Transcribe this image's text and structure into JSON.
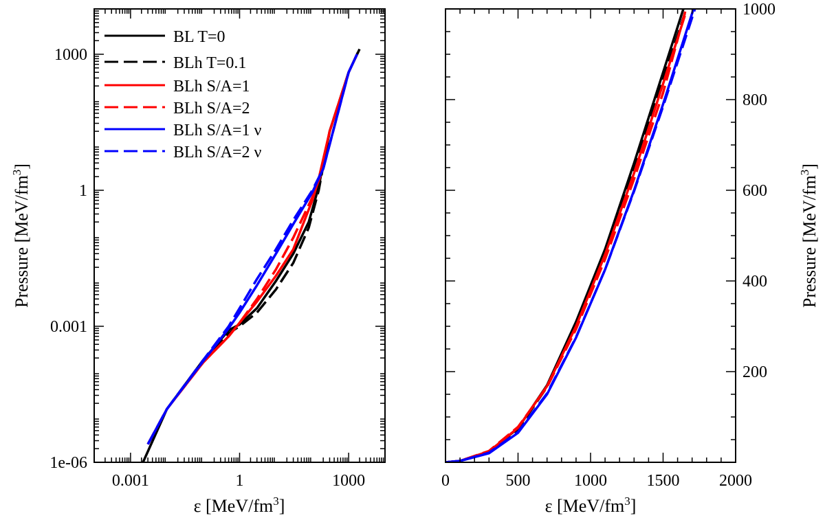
{
  "chart_data": [
    {
      "type": "line",
      "panel": "left",
      "xscale": "log",
      "yscale": "log",
      "xlabel_sym": "ε",
      "xlabel_unit": "[MeV/fm",
      "xlabel_sup": "3",
      "xlabel_close": "]",
      "ylabel_text": "Pressure [MeV/fm",
      "ylabel_sup": "3",
      "ylabel_close": "]",
      "xlim": [
        0.0001,
        10000
      ],
      "ylim": [
        1e-06,
        10000
      ],
      "xticks": [
        {
          "value": 0.001,
          "label": "0.001"
        },
        {
          "value": 1,
          "label": "1"
        },
        {
          "value": 1000,
          "label": "1000"
        }
      ],
      "yticks": [
        {
          "value": 1e-06,
          "label": "1e-06"
        },
        {
          "value": 0.001,
          "label": "0.001"
        },
        {
          "value": 1,
          "label": "1"
        },
        {
          "value": 1000,
          "label": "1000"
        }
      ],
      "legend_position": "top-left",
      "series": [
        {
          "name": "BL T=0",
          "color": "#000000",
          "dash": "solid",
          "x": [
            0.0022,
            0.01,
            0.1,
            0.5,
            1,
            3,
            10,
            30,
            80,
            150,
            300,
            1000,
            2000
          ],
          "y": [
            1e-06,
            1.5e-05,
            0.00018,
            0.00082,
            0.0011,
            0.0025,
            0.01,
            0.04,
            0.2,
            1.2,
            20,
            400,
            1300
          ]
        },
        {
          "name": "BLh T=0.1",
          "color": "#000000",
          "dash": "dashed",
          "x": [
            0.003,
            0.01,
            0.1,
            0.5,
            1,
            3,
            10,
            30,
            80,
            150,
            300,
            1000,
            1800
          ],
          "y": [
            2.5e-06,
            1.5e-05,
            0.00018,
            0.0007,
            0.001,
            0.002,
            0.0065,
            0.025,
            0.15,
            1.0,
            20,
            400,
            1100
          ]
        },
        {
          "name": "BLh S/A=1",
          "color": "#ff0000",
          "dash": "solid",
          "x": [
            0.003,
            0.01,
            0.1,
            0.5,
            1,
            3,
            10,
            30,
            100,
            150,
            300,
            1000,
            1700
          ],
          "y": [
            2.5e-06,
            1.5e-05,
            0.00016,
            0.0006,
            0.0012,
            0.0035,
            0.013,
            0.05,
            0.6,
            1.8,
            20,
            400,
            1000
          ]
        },
        {
          "name": "BLh S/A=2",
          "color": "#ff0000",
          "dash": "dashed",
          "x": [
            0.003,
            0.01,
            0.1,
            0.5,
            1,
            3,
            10,
            30,
            100,
            200,
            1000,
            1700
          ],
          "y": [
            2.5e-06,
            1.5e-05,
            0.00016,
            0.0006,
            0.0012,
            0.004,
            0.018,
            0.09,
            0.7,
            3,
            400,
            1000
          ]
        },
        {
          "name": "BLh S/A=1 ν",
          "color": "#0000ff",
          "dash": "solid",
          "x": [
            0.003,
            0.01,
            0.1,
            0.5,
            1,
            3,
            10,
            30,
            100,
            200,
            1000,
            1700
          ],
          "y": [
            2.5e-06,
            1.5e-05,
            0.00017,
            0.0009,
            0.002,
            0.008,
            0.04,
            0.18,
            0.9,
            3,
            400,
            1000
          ]
        },
        {
          "name": "BLh S/A=2 ν",
          "color": "#0000ff",
          "dash": "dashed",
          "x": [
            0.003,
            0.01,
            0.1,
            0.5,
            1,
            3,
            10,
            30,
            100,
            200,
            1000,
            1700
          ],
          "y": [
            2.5e-06,
            1.5e-05,
            0.00018,
            0.001,
            0.0025,
            0.011,
            0.05,
            0.22,
            1.0,
            3,
            400,
            1000
          ]
        }
      ]
    },
    {
      "type": "line",
      "panel": "right",
      "xscale": "linear",
      "yscale": "linear",
      "xlabel_sym": "ε",
      "xlabel_unit": "[MeV/fm",
      "xlabel_sup": "3",
      "xlabel_close": "]",
      "ylabel_text": "Pressure [MeV/fm",
      "ylabel_sup": "3",
      "ylabel_close": "]",
      "xlim": [
        0,
        2000
      ],
      "ylim": [
        0,
        1000
      ],
      "xticks": [
        {
          "value": 0,
          "label": "0"
        },
        {
          "value": 500,
          "label": "500"
        },
        {
          "value": 1000,
          "label": "1000"
        },
        {
          "value": 1500,
          "label": "1500"
        },
        {
          "value": 2000,
          "label": "2000"
        }
      ],
      "yticks": [
        {
          "value": 200,
          "label": "200"
        },
        {
          "value": 400,
          "label": "400"
        },
        {
          "value": 600,
          "label": "600"
        },
        {
          "value": 800,
          "label": "800"
        },
        {
          "value": 1000,
          "label": "1000"
        }
      ],
      "series": [
        {
          "name": "BL T=0",
          "color": "#000000",
          "dash": "solid",
          "x": [
            0,
            100,
            300,
            500,
            700,
            900,
            1100,
            1300,
            1500,
            1650
          ],
          "y": [
            0,
            3,
            24,
            75,
            170,
            310,
            470,
            660,
            860,
            1010
          ]
        },
        {
          "name": "BLh T=0.1",
          "color": "#000000",
          "dash": "dashed",
          "x": [
            0,
            100,
            300,
            500,
            700,
            900,
            1100,
            1300,
            1500,
            1650
          ],
          "y": [
            0,
            3,
            23,
            73,
            166,
            302,
            460,
            645,
            845,
            990
          ]
        },
        {
          "name": "BLh S/A=1",
          "color": "#ff0000",
          "dash": "solid",
          "x": [
            0,
            100,
            300,
            500,
            700,
            900,
            1100,
            1300,
            1500,
            1650
          ],
          "y": [
            0,
            3,
            24,
            76,
            168,
            300,
            458,
            638,
            835,
            985
          ]
        },
        {
          "name": "BLh S/A=2",
          "color": "#ff0000",
          "dash": "dashed",
          "x": [
            0,
            100,
            300,
            500,
            700,
            900,
            1100,
            1300,
            1500,
            1700
          ],
          "y": [
            0,
            3,
            25,
            78,
            166,
            294,
            448,
            625,
            815,
            1050
          ]
        },
        {
          "name": "BLh S/A=1 ν",
          "color": "#0000ff",
          "dash": "solid",
          "x": [
            0,
            100,
            300,
            500,
            700,
            900,
            1100,
            1300,
            1500,
            1720
          ],
          "y": [
            0,
            3,
            20,
            65,
            150,
            275,
            425,
            600,
            790,
            1010
          ]
        },
        {
          "name": "BLh S/A=2 ν",
          "color": "#0000ff",
          "dash": "dashed",
          "x": [
            0,
            100,
            300,
            500,
            700,
            900,
            1100,
            1300,
            1500,
            1750
          ],
          "y": [
            0,
            3,
            21,
            67,
            152,
            276,
            425,
            598,
            785,
            1030
          ]
        }
      ]
    }
  ]
}
